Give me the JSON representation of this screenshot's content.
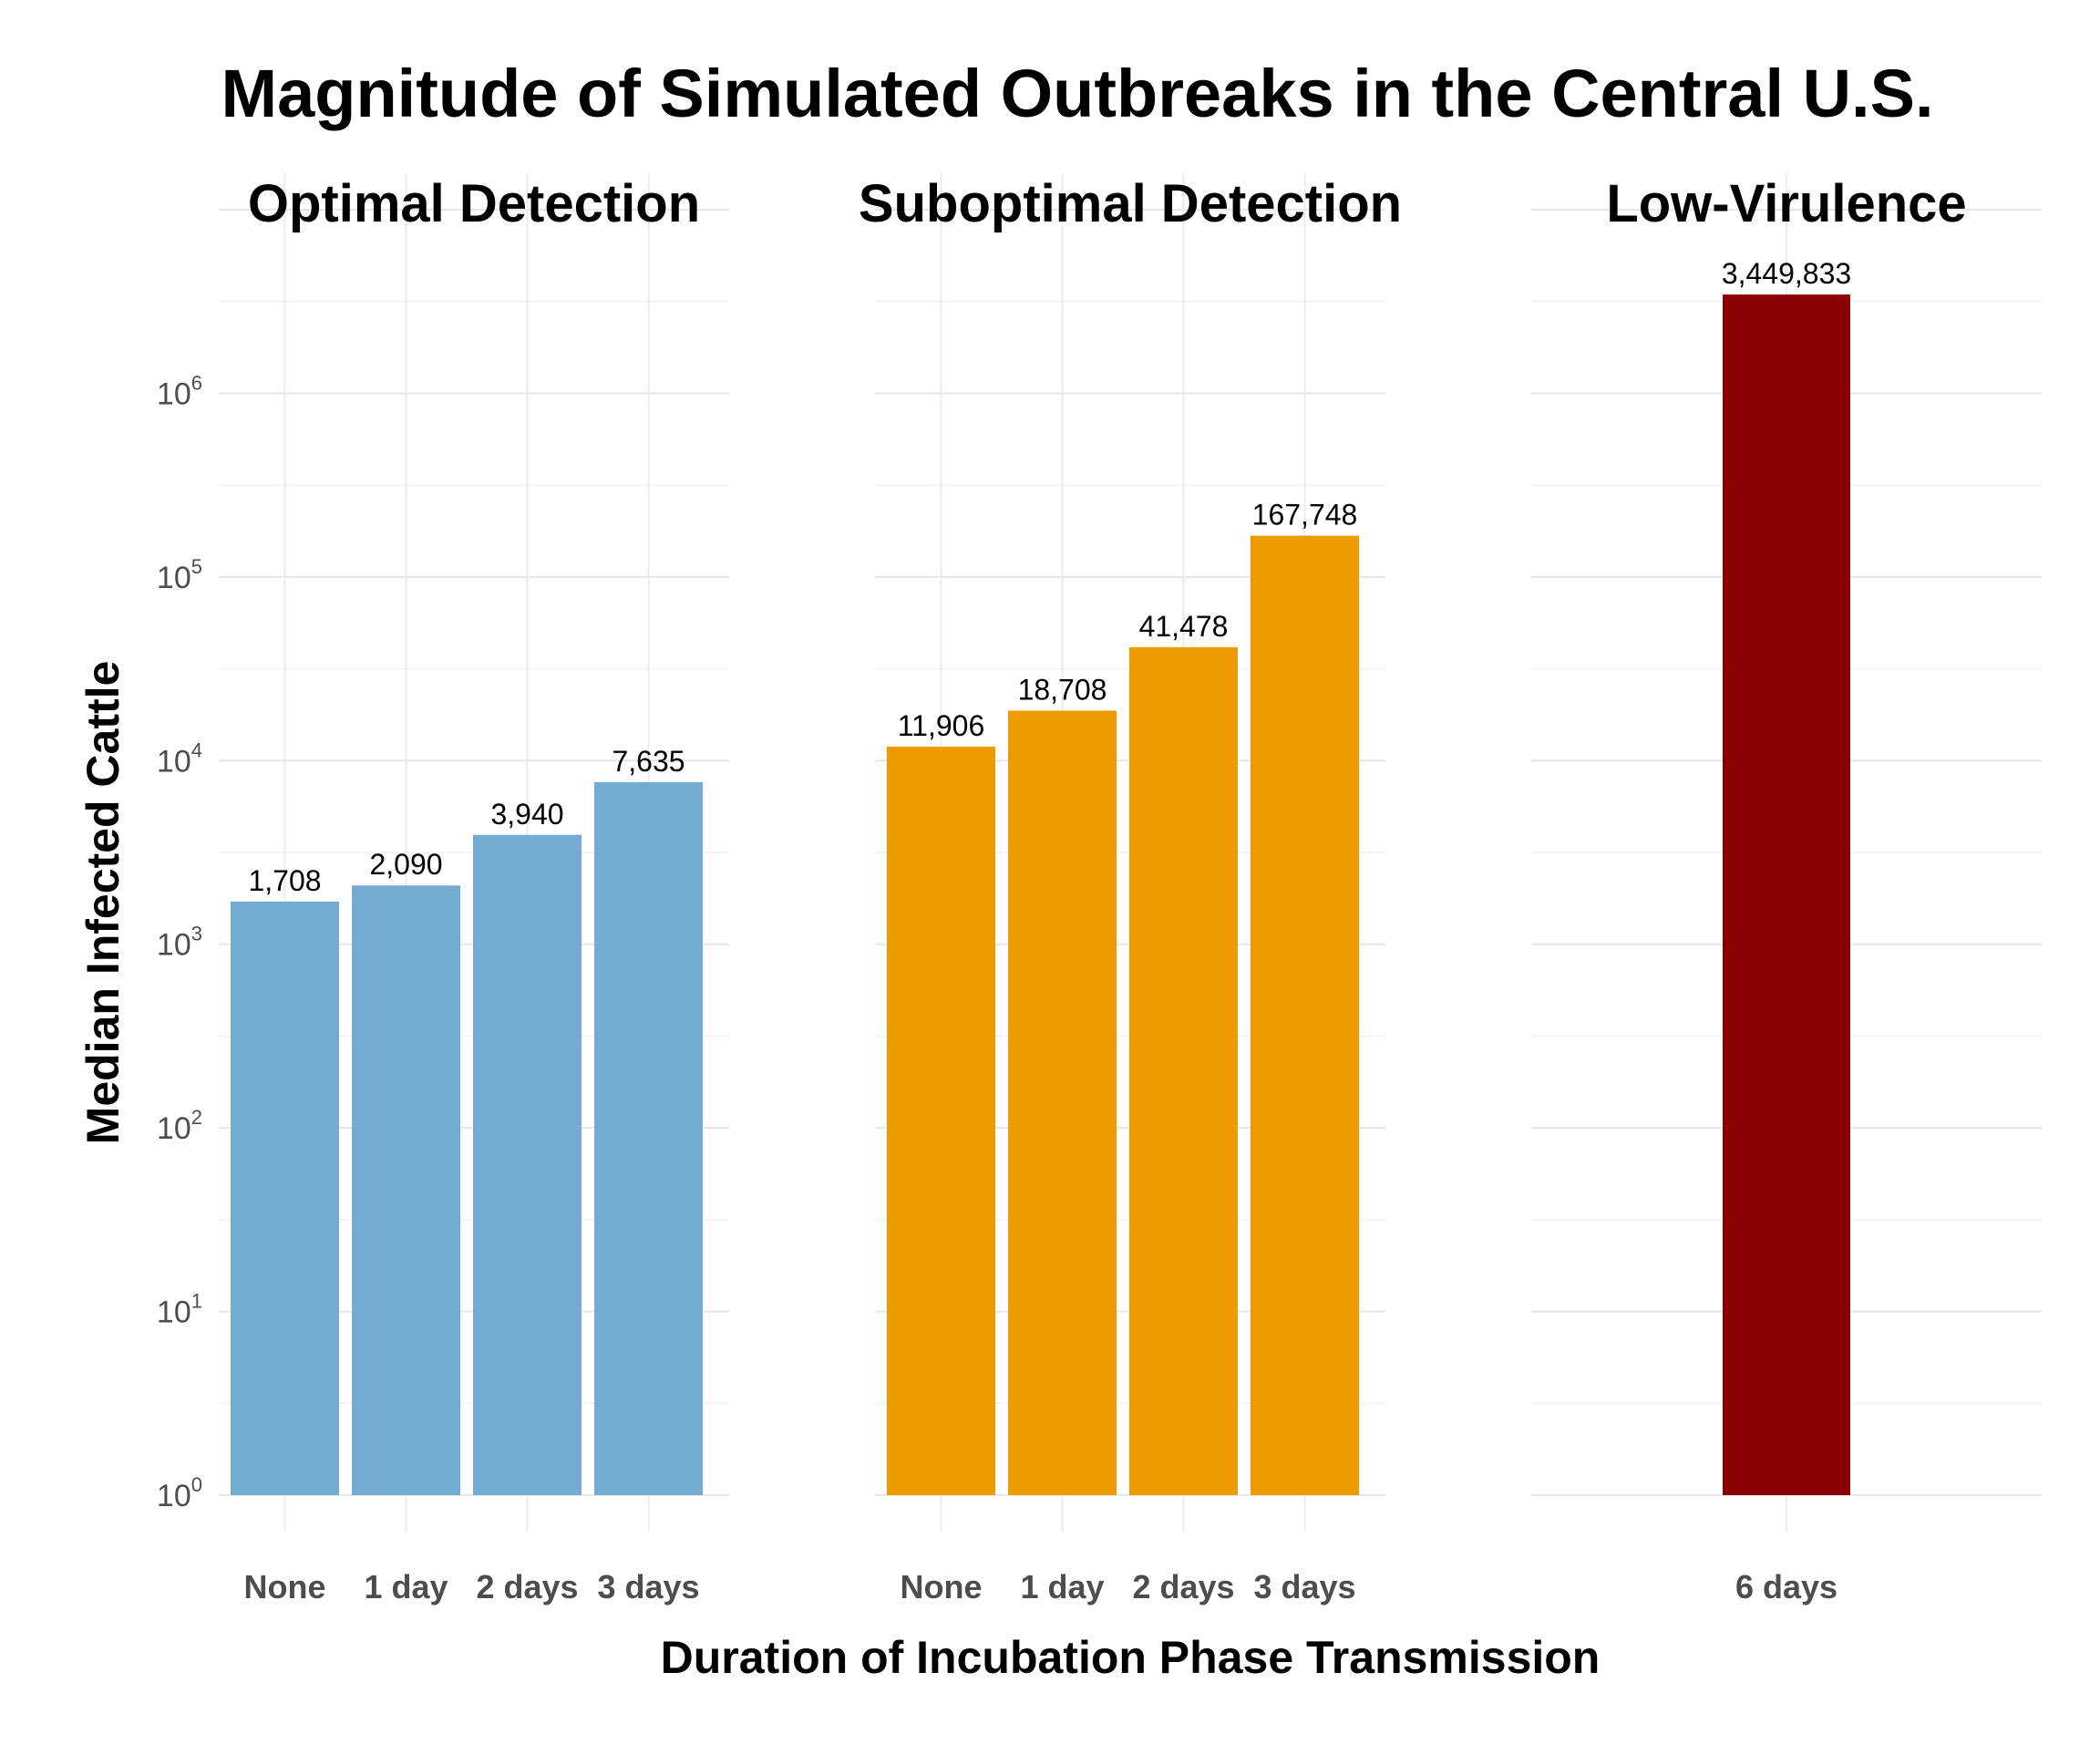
{
  "chart_data": {
    "type": "bar",
    "title": "Magnitude of Simulated Outbreaks in the Central U.S.",
    "xlabel": "Duration of Incubation Phase Transmission",
    "ylabel": "Median Infected Cattle",
    "yscale": "log10",
    "ylim": [
      1,
      10000000
    ],
    "yticks": [
      {
        "base": "10",
        "exp": "0"
      },
      {
        "base": "10",
        "exp": "1"
      },
      {
        "base": "10",
        "exp": "2"
      },
      {
        "base": "10",
        "exp": "3"
      },
      {
        "base": "10",
        "exp": "4"
      },
      {
        "base": "10",
        "exp": "5"
      },
      {
        "base": "10",
        "exp": "6"
      }
    ],
    "grid": true,
    "legend": "none",
    "facets": [
      {
        "title": "Optimal Detection",
        "color": "#74acd1",
        "categories": [
          "None",
          "1 day",
          "2 days",
          "3 days"
        ],
        "values": [
          1708,
          2090,
          3940,
          7635
        ],
        "labels": [
          "1,708",
          "2,090",
          "3,940",
          "7,635"
        ]
      },
      {
        "title": "Suboptimal Detection",
        "color": "#ee9b00",
        "categories": [
          "None",
          "1 day",
          "2 days",
          "3 days"
        ],
        "values": [
          11906,
          18708,
          41478,
          167748
        ],
        "labels": [
          "11,906",
          "18,708",
          "41,478",
          "167,748"
        ]
      },
      {
        "title": "Low-Virulence",
        "color": "#8b0000",
        "categories": [
          "6 days"
        ],
        "values": [
          3449833
        ],
        "labels": [
          "3,449,833"
        ]
      }
    ]
  }
}
